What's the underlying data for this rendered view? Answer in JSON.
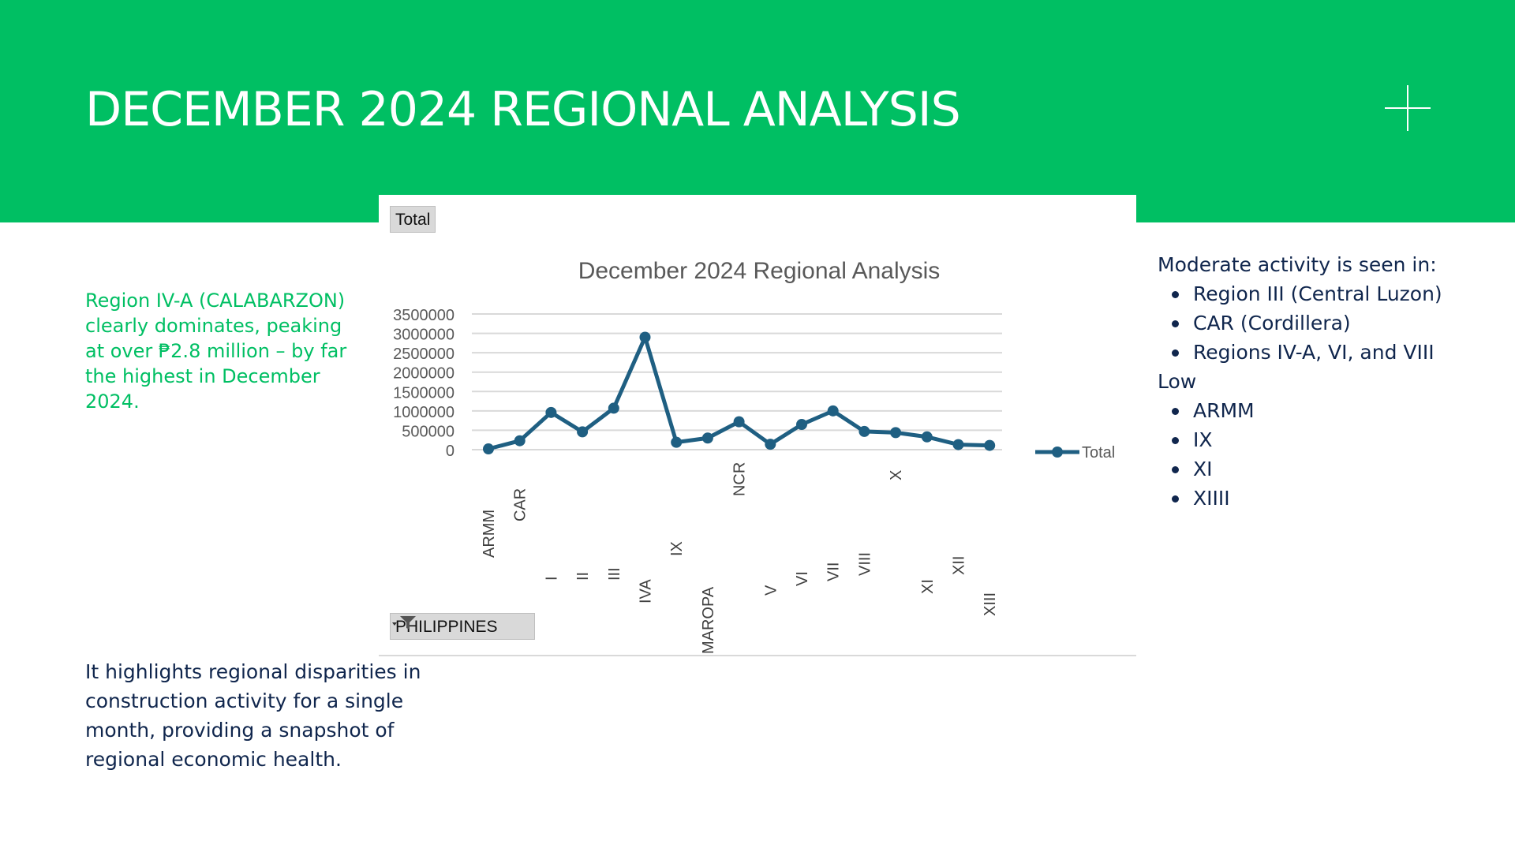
{
  "page": {
    "title": "DECEMBER 2024 REGIONAL ANALYSIS",
    "accent_color": "#00bf63",
    "text_color": "#10264d"
  },
  "chart_panel": {
    "field_button": "Total",
    "filter_button": "PHILIPPINES",
    "filter_icon": "filter-icon"
  },
  "chart_data": {
    "type": "line",
    "title": "December 2024 Regional Analysis",
    "categories": [
      "ARMM",
      "CAR",
      "I",
      "II",
      "III",
      "IVA",
      "IX",
      "MAROPA",
      "NCR",
      "V",
      "VI",
      "VII",
      "VIII",
      "X",
      "XI",
      "XII",
      "XIII"
    ],
    "series": [
      {
        "name": "Total",
        "color": "#1f5f82",
        "values": [
          20000,
          230000,
          960000,
          460000,
          1070000,
          2900000,
          190000,
          300000,
          720000,
          140000,
          650000,
          1000000,
          470000,
          440000,
          330000,
          130000,
          110000
        ]
      }
    ],
    "y_ticks": [
      "3500000",
      "3000000",
      "2500000",
      "2000000",
      "1500000",
      "1000000",
      "500000",
      "0"
    ],
    "ylim": [
      0,
      3500000
    ],
    "xlabel": "",
    "ylabel": "",
    "grid": true,
    "legend": "right"
  },
  "left_note": "Region IV-A (CALABARZON) clearly dominates, peaking at over ₱2.8 million – by far the highest in December 2024.",
  "bottom_note": "It highlights regional disparities in construction activity for a single month, providing a snapshot of regional economic health.",
  "right_notes": {
    "moderate_heading": "Moderate activity is seen in:",
    "moderate_items": [
      "Region III (Central Luzon)",
      "CAR (Cordillera)",
      "Regions IV-A, VI, and VIII"
    ],
    "low_heading": "Low",
    "low_items": [
      "ARMM",
      "IX",
      "XI",
      "XIIII"
    ]
  }
}
